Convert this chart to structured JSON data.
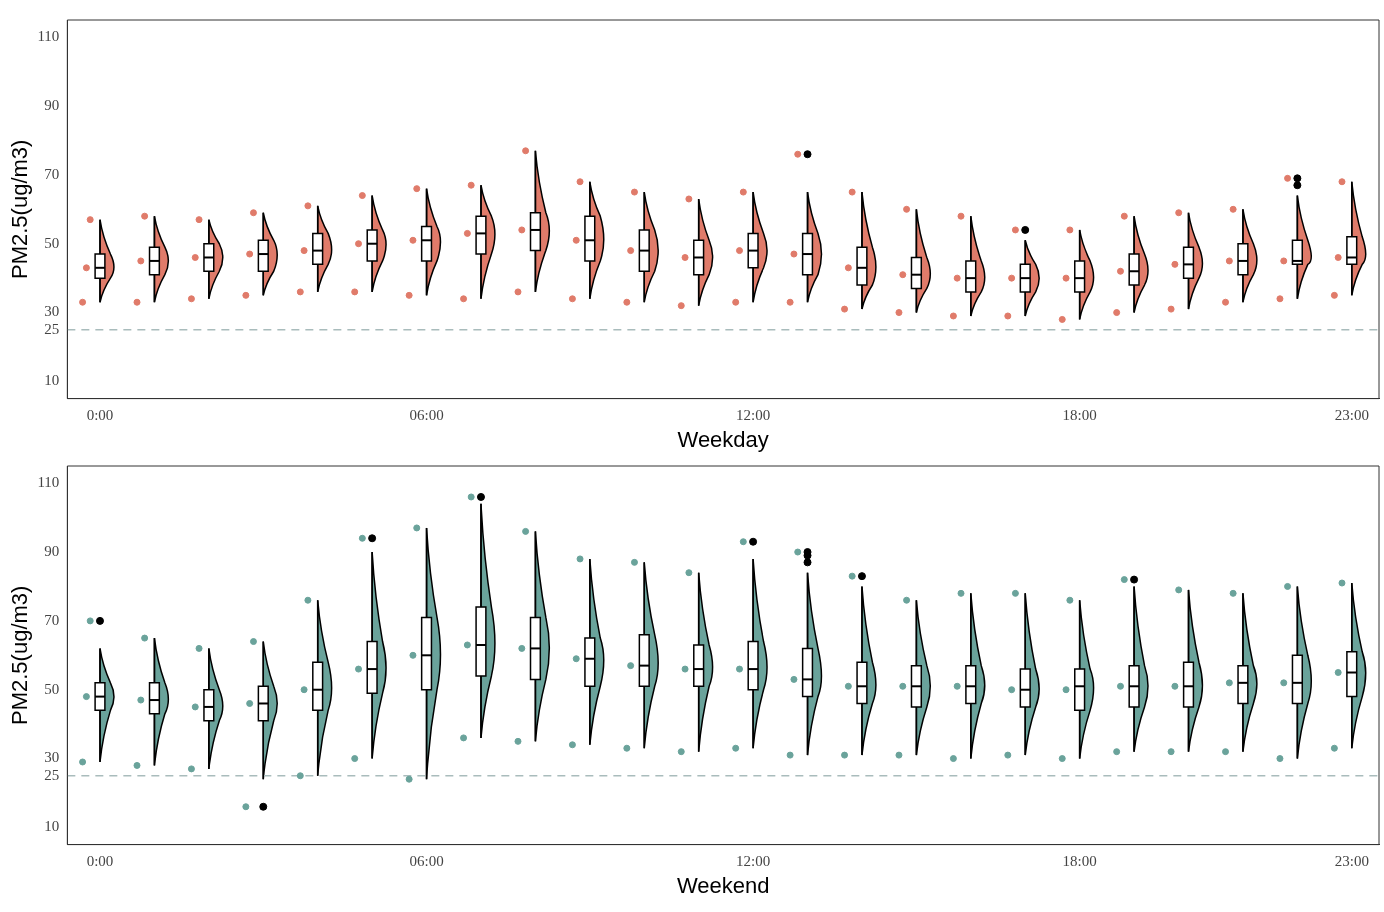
{
  "chart_data": [
    {
      "type": "box",
      "xlabel": "Weekday",
      "ylabel": "PM2.5(ug/m3)",
      "color": "#ffffff",
      "x": [
        0,
        1,
        2,
        3,
        4,
        5,
        6,
        7,
        8,
        9,
        10,
        11,
        12,
        13,
        14,
        15,
        16,
        17,
        18,
        19,
        20,
        21,
        22,
        23
      ],
      "boxes": [
        {
          "low": 33,
          "q1": 40,
          "median": 43,
          "q3": 47,
          "high": 57
        },
        {
          "low": 33,
          "q1": 41,
          "median": 45,
          "q3": 49,
          "high": 58
        },
        {
          "low": 34,
          "q1": 42,
          "median": 46,
          "q3": 50,
          "high": 57
        },
        {
          "low": 35,
          "q1": 42,
          "median": 47,
          "q3": 51,
          "high": 59
        },
        {
          "low": 36,
          "q1": 44,
          "median": 48,
          "q3": 53,
          "high": 61
        },
        {
          "low": 36,
          "q1": 45,
          "median": 50,
          "q3": 54,
          "high": 64
        },
        {
          "low": 35,
          "q1": 45,
          "median": 51,
          "q3": 55,
          "high": 66
        },
        {
          "low": 34,
          "q1": 47,
          "median": 53,
          "q3": 58,
          "high": 67
        },
        {
          "low": 36,
          "q1": 48,
          "median": 54,
          "q3": 59,
          "high": 77
        },
        {
          "low": 34,
          "q1": 45,
          "median": 51,
          "q3": 58,
          "high": 68
        },
        {
          "low": 33,
          "q1": 42,
          "median": 48,
          "q3": 54,
          "high": 65
        },
        {
          "low": 32,
          "q1": 41,
          "median": 46,
          "q3": 51,
          "high": 63
        },
        {
          "low": 33,
          "q1": 43,
          "median": 48,
          "q3": 53,
          "high": 65
        },
        {
          "low": 33,
          "q1": 41,
          "median": 47,
          "q3": 53,
          "high": 65,
          "outliers": [
            76
          ]
        },
        {
          "low": 31,
          "q1": 38,
          "median": 43,
          "q3": 49,
          "high": 65
        },
        {
          "low": 30,
          "q1": 37,
          "median": 41,
          "q3": 46,
          "high": 60
        },
        {
          "low": 29,
          "q1": 36,
          "median": 40,
          "q3": 45,
          "high": 58
        },
        {
          "low": 29,
          "q1": 36,
          "median": 40,
          "q3": 44,
          "high": 51,
          "outliers": [
            54
          ]
        },
        {
          "low": 28,
          "q1": 36,
          "median": 40,
          "q3": 45,
          "high": 54
        },
        {
          "low": 30,
          "q1": 38,
          "median": 42,
          "q3": 47,
          "high": 58
        },
        {
          "low": 31,
          "q1": 40,
          "median": 44,
          "q3": 49,
          "high": 59
        },
        {
          "low": 33,
          "q1": 41,
          "median": 45,
          "q3": 50,
          "high": 60
        },
        {
          "low": 34,
          "q1": 44,
          "median": 45,
          "q3": 51,
          "high": 64,
          "outliers": [
            67,
            69
          ]
        },
        {
          "low": 35,
          "q1": 44,
          "median": 46,
          "q3": 52,
          "high": 68
        }
      ],
      "series": [
        {
          "type": "scatter",
          "color": "#e07b6a",
          "x": [
            -0.32,
            -0.25,
            -0.18,
            0.68,
            0.75,
            0.82,
            1.68,
            1.75,
            1.82,
            2.68,
            2.75,
            2.82,
            3.68,
            3.75,
            3.82,
            4.68,
            4.75,
            4.82,
            5.68,
            5.75,
            5.82,
            6.68,
            6.75,
            6.82,
            7.68,
            7.75,
            7.82,
            8.68,
            8.75,
            8.82,
            9.68,
            9.75,
            9.82,
            10.68,
            10.75,
            10.82,
            11.68,
            11.75,
            11.82,
            12.68,
            12.75,
            12.82,
            13.68,
            13.75,
            13.82,
            14.68,
            14.75,
            14.82,
            15.68,
            15.75,
            15.82,
            16.68,
            16.75,
            16.82,
            17.68,
            17.75,
            17.82,
            18.68,
            18.75,
            18.82,
            19.68,
            19.75,
            19.82,
            20.68,
            20.75,
            20.82,
            21.68,
            21.75,
            21.82,
            22.68,
            22.75,
            22.82
          ],
          "values": [
            33,
            43,
            57,
            33,
            45,
            58,
            34,
            46,
            57,
            35,
            47,
            59,
            36,
            48,
            61,
            36,
            50,
            64,
            35,
            51,
            66,
            34,
            53,
            67,
            36,
            54,
            77,
            34,
            51,
            68,
            33,
            48,
            65,
            32,
            46,
            63,
            33,
            48,
            65,
            33,
            47,
            76,
            31,
            43,
            65,
            30,
            41,
            60,
            29,
            40,
            58,
            29,
            40,
            54,
            28,
            40,
            54,
            30,
            42,
            58,
            31,
            44,
            59,
            33,
            45,
            60,
            34,
            45,
            69,
            35,
            46,
            68
          ]
        }
      ],
      "xlim": [
        -0.6,
        23.5
      ],
      "ylim": [
        5,
        115
      ],
      "xticks": [
        {
          "value": 0,
          "label": "0:00"
        },
        {
          "value": 6,
          "label": "06:00"
        },
        {
          "value": 12,
          "label": "12:00"
        },
        {
          "value": 18,
          "label": "18:00"
        },
        {
          "value": 23,
          "label": "23:00"
        }
      ],
      "yticks": [
        10,
        25,
        30,
        50,
        70,
        90,
        110
      ],
      "ref_lines": [
        {
          "axis": "y",
          "value": 25,
          "color": "#a9bcbc",
          "line_style": "dashed"
        }
      ]
    },
    {
      "type": "box",
      "xlabel": "Weekend",
      "ylabel": "PM2.5(ug/m3)",
      "color": "#ffffff",
      "x": [
        0,
        1,
        2,
        3,
        4,
        5,
        6,
        7,
        8,
        9,
        10,
        11,
        12,
        13,
        14,
        15,
        16,
        17,
        18,
        19,
        20,
        21,
        22,
        23
      ],
      "boxes": [
        {
          "low": 29,
          "q1": 44,
          "median": 48,
          "q3": 52,
          "high": 62,
          "outliers": [
            70
          ]
        },
        {
          "low": 28,
          "q1": 43,
          "median": 47,
          "q3": 52,
          "high": 65
        },
        {
          "low": 27,
          "q1": 41,
          "median": 45,
          "q3": 50,
          "high": 62
        },
        {
          "low": 24,
          "q1": 41,
          "median": 46,
          "q3": 51,
          "high": 64,
          "outliers": [
            16
          ]
        },
        {
          "low": 25,
          "q1": 44,
          "median": 50,
          "q3": 58,
          "high": 76
        },
        {
          "low": 30,
          "q1": 49,
          "median": 56,
          "q3": 64,
          "high": 90,
          "outliers": [
            94
          ]
        },
        {
          "low": 24,
          "q1": 50,
          "median": 60,
          "q3": 71,
          "high": 97
        },
        {
          "low": 36,
          "q1": 54,
          "median": 63,
          "q3": 74,
          "high": 104,
          "outliers": [
            106
          ]
        },
        {
          "low": 35,
          "q1": 53,
          "median": 62,
          "q3": 71,
          "high": 96
        },
        {
          "low": 34,
          "q1": 51,
          "median": 59,
          "q3": 65,
          "high": 88
        },
        {
          "low": 33,
          "q1": 51,
          "median": 57,
          "q3": 66,
          "high": 87
        },
        {
          "low": 32,
          "q1": 51,
          "median": 56,
          "q3": 63,
          "high": 84
        },
        {
          "low": 33,
          "q1": 50,
          "median": 56,
          "q3": 64,
          "high": 88,
          "outliers": [
            93
          ]
        },
        {
          "low": 31,
          "q1": 48,
          "median": 53,
          "q3": 62,
          "high": 84,
          "outliers": [
            87,
            89,
            90
          ]
        },
        {
          "low": 31,
          "q1": 46,
          "median": 51,
          "q3": 58,
          "high": 80,
          "outliers": [
            83
          ]
        },
        {
          "low": 31,
          "q1": 45,
          "median": 51,
          "q3": 57,
          "high": 76
        },
        {
          "low": 30,
          "q1": 46,
          "median": 51,
          "q3": 57,
          "high": 78
        },
        {
          "low": 31,
          "q1": 45,
          "median": 50,
          "q3": 56,
          "high": 78
        },
        {
          "low": 30,
          "q1": 44,
          "median": 51,
          "q3": 56,
          "high": 76
        },
        {
          "low": 32,
          "q1": 45,
          "median": 51,
          "q3": 57,
          "high": 80,
          "outliers": [
            82
          ]
        },
        {
          "low": 32,
          "q1": 45,
          "median": 51,
          "q3": 58,
          "high": 79
        },
        {
          "low": 32,
          "q1": 46,
          "median": 52,
          "q3": 57,
          "high": 78
        },
        {
          "low": 30,
          "q1": 46,
          "median": 52,
          "q3": 60,
          "high": 80
        },
        {
          "low": 33,
          "q1": 48,
          "median": 55,
          "q3": 61,
          "high": 81
        }
      ],
      "series": [
        {
          "type": "scatter",
          "color": "#6aa39b",
          "x": [
            -0.32,
            -0.25,
            -0.18,
            0.68,
            0.75,
            0.82,
            1.68,
            1.75,
            1.82,
            2.68,
            2.75,
            2.82,
            3.68,
            3.75,
            3.82,
            4.68,
            4.75,
            4.82,
            5.68,
            5.75,
            5.82,
            6.68,
            6.75,
            6.82,
            7.68,
            7.75,
            7.82,
            8.68,
            8.75,
            8.82,
            9.68,
            9.75,
            9.82,
            10.68,
            10.75,
            10.82,
            11.68,
            11.75,
            11.82,
            12.68,
            12.75,
            12.82,
            13.68,
            13.75,
            13.82,
            14.68,
            14.75,
            14.82,
            15.68,
            15.75,
            15.82,
            16.68,
            16.75,
            16.82,
            17.68,
            17.75,
            17.82,
            18.68,
            18.75,
            18.82,
            19.68,
            19.75,
            19.82,
            20.68,
            20.75,
            20.82,
            21.68,
            21.75,
            21.82,
            22.68,
            22.75,
            22.82
          ],
          "values": [
            29,
            48,
            70,
            28,
            47,
            65,
            27,
            45,
            62,
            16,
            46,
            64,
            25,
            50,
            76,
            30,
            56,
            94,
            24,
            60,
            97,
            36,
            63,
            106,
            35,
            62,
            96,
            34,
            59,
            88,
            33,
            57,
            87,
            32,
            56,
            84,
            33,
            56,
            93,
            31,
            53,
            90,
            31,
            51,
            83,
            31,
            51,
            76,
            30,
            51,
            78,
            31,
            50,
            78,
            30,
            50,
            76,
            32,
            51,
            82,
            32,
            51,
            79,
            32,
            52,
            78,
            30,
            52,
            80,
            33,
            55,
            81
          ]
        }
      ],
      "xlim": [
        -0.6,
        23.5
      ],
      "ylim": [
        5,
        115
      ],
      "xticks": [
        {
          "value": 0,
          "label": "0:00"
        },
        {
          "value": 6,
          "label": "06:00"
        },
        {
          "value": 12,
          "label": "12:00"
        },
        {
          "value": 18,
          "label": "18:00"
        },
        {
          "value": 23,
          "label": "23:00"
        }
      ],
      "yticks": [
        10,
        25,
        30,
        50,
        70,
        90,
        110
      ],
      "ref_lines": [
        {
          "axis": "y",
          "value": 25,
          "color": "#a9bcbc",
          "line_style": "dashed"
        }
      ]
    }
  ]
}
